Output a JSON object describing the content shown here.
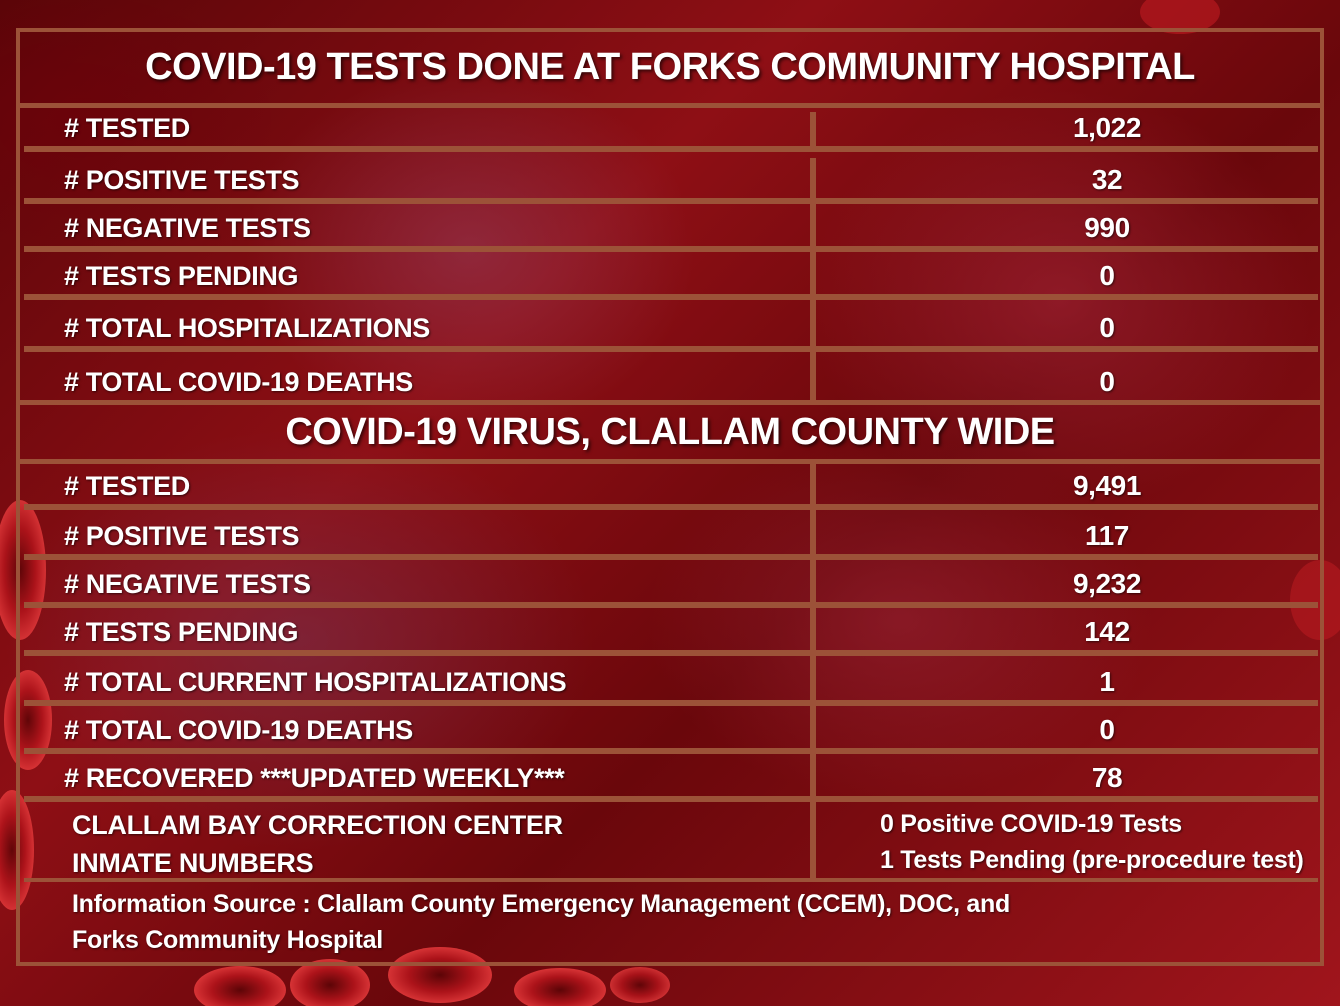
{
  "hospital": {
    "title": "COVID-19 TESTS DONE AT FORKS COMMUNITY HOSPITAL",
    "rows": [
      {
        "label": "# TESTED",
        "value": "1,022"
      },
      {
        "label": "# POSITIVE TESTS",
        "value": "32"
      },
      {
        "label": "# NEGATIVE TESTS",
        "value": "990"
      },
      {
        "label": "# TESTS PENDING",
        "value": "0"
      },
      {
        "label": "# TOTAL HOSPITALIZATIONS",
        "value": "0"
      },
      {
        "label": "# TOTAL COVID-19 DEATHS",
        "value": "0"
      }
    ]
  },
  "county": {
    "title": "COVID-19 VIRUS, CLALLAM COUNTY WIDE",
    "rows": [
      {
        "label": "# TESTED",
        "value": "9,491"
      },
      {
        "label": "# POSITIVE TESTS",
        "value": "117"
      },
      {
        "label": "# NEGATIVE TESTS",
        "value": "9,232"
      },
      {
        "label": "# TESTS PENDING",
        "value": "142"
      },
      {
        "label": "# TOTAL CURRENT HOSPITALIZATIONS",
        "value": "1"
      },
      {
        "label": "# TOTAL COVID-19 DEATHS",
        "value": "0"
      },
      {
        "label": "# RECOVERED  ***UPDATED WEEKLY***",
        "value": "78"
      }
    ]
  },
  "inmate": {
    "label_line1": "CLALLAM BAY CORRECTION CENTER",
    "label_line2": "INMATE NUMBERS",
    "value_line1": "0 Positive COVID-19 Tests",
    "value_line2": "1 Tests Pending (pre-procedure test)"
  },
  "source": {
    "line1": "Information Source : Clallam County Emergency Management (CCEM), DOC, and",
    "line2": "Forks Community Hospital"
  },
  "colors": {
    "border": "#9c5238",
    "background": "#8e0f15",
    "text": "#ffffff"
  },
  "decoration": "blood-cells-icon"
}
